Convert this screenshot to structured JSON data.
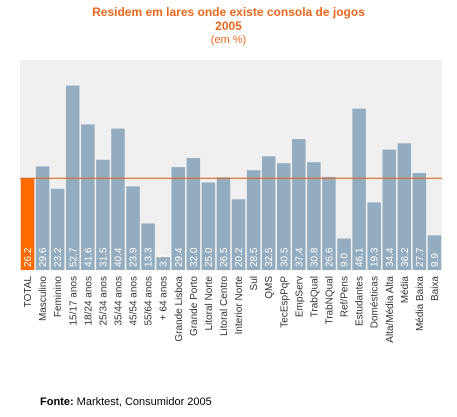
{
  "chart_data": {
    "type": "bar",
    "title_line1": "Residem em lares onde existe consola de jogos",
    "title_line2": "2005",
    "subtitle": "(em %)",
    "categories": [
      "TOTAL",
      "Masculino",
      "Feminino",
      "15/17 anos",
      "18/24 anos",
      "25/34 anos",
      "35/44 anos",
      "45/54 anos",
      "55/64 anos",
      "+ 64 anos",
      "Grande Lisboa",
      "Grande Porto",
      "Litoral Norte",
      "Litoral Centro",
      "Interior Norte",
      "Sul",
      "QMS",
      "TecEspPqP",
      "EmpServ",
      "TrabQual",
      "TrabNQual",
      "Ref/Pens",
      "Estudantes",
      "Domésticas",
      "Alta/Média Alta",
      "Média",
      "Média Baixa",
      "Baixa"
    ],
    "values": [
      26.2,
      29.6,
      23.2,
      52.7,
      41.6,
      31.5,
      40.4,
      23.9,
      13.3,
      3.7,
      29.4,
      32.0,
      25.0,
      26.5,
      20.2,
      28.5,
      32.5,
      30.5,
      37.4,
      30.8,
      26.6,
      9.0,
      46.1,
      19.3,
      34.4,
      36.2,
      27.7,
      9.9
    ],
    "value_labels": [
      "26.2",
      "29.6",
      "23.2",
      "52.7",
      "41.6",
      "31.5",
      "40.4",
      "23.9",
      "13.3",
      "3.7",
      "29.4",
      "32.0",
      "25.0",
      "26.5",
      "20.2",
      "28.5",
      "32.5",
      "30.5",
      "37.4",
      "30.8",
      "26.6",
      "9.0",
      "46.1",
      "19.3",
      "34.4",
      "36.2",
      "27.7",
      "9.9"
    ],
    "highlight_category": "TOTAL",
    "reference_line": 26.2,
    "ylim": [
      0,
      60
    ],
    "colors": {
      "bar": "#94acc0",
      "highlight": "#ff6a00",
      "reference_line": "#e0692a",
      "plot_bg": "#f0f0f0",
      "title": "#e8681e",
      "value_label": "#ffffff"
    }
  },
  "source": {
    "label": "Fonte:",
    "text": " Marktest, Consumidor 2005"
  }
}
